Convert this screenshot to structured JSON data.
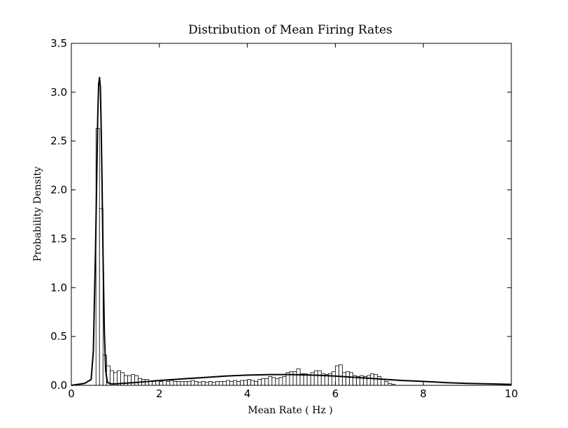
{
  "chart_data": {
    "type": "bar",
    "title": "Distribution of Mean Firing Rates",
    "xlabel": "Mean Rate ( Hz )",
    "ylabel": "Probability Density",
    "xlim": [
      0,
      10
    ],
    "ylim": [
      0,
      3.5
    ],
    "xticks": [
      0,
      2,
      4,
      6,
      8,
      10
    ],
    "xtick_labels": [
      "0",
      "2",
      "4",
      "6",
      "8",
      "10"
    ],
    "yticks": [
      0,
      0.5,
      1.0,
      1.5,
      2.0,
      2.5,
      3.0,
      3.5
    ],
    "ytick_labels": [
      "0.0",
      "0.5",
      "1.0",
      "1.5",
      "2.0",
      "2.5",
      "3.0",
      "3.5"
    ],
    "grid": false,
    "legend": "none",
    "histogram": {
      "bin_start": 0.56,
      "bin_width": 0.08,
      "values": [
        2.63,
        1.81,
        0.31,
        0.2,
        0.15,
        0.13,
        0.15,
        0.13,
        0.1,
        0.1,
        0.11,
        0.1,
        0.07,
        0.06,
        0.06,
        0.04,
        0.04,
        0.05,
        0.04,
        0.05,
        0.04,
        0.05,
        0.04,
        0.04,
        0.04,
        0.04,
        0.04,
        0.05,
        0.04,
        0.03,
        0.04,
        0.03,
        0.04,
        0.03,
        0.04,
        0.04,
        0.04,
        0.05,
        0.04,
        0.05,
        0.04,
        0.05,
        0.05,
        0.06,
        0.05,
        0.04,
        0.06,
        0.07,
        0.07,
        0.09,
        0.08,
        0.07,
        0.08,
        0.09,
        0.13,
        0.14,
        0.14,
        0.17,
        0.12,
        0.12,
        0.11,
        0.13,
        0.15,
        0.15,
        0.12,
        0.11,
        0.12,
        0.14,
        0.2,
        0.21,
        0.13,
        0.14,
        0.13,
        0.1,
        0.09,
        0.1,
        0.09,
        0.1,
        0.12,
        0.11,
        0.09,
        0.06,
        0.04,
        0.02,
        0.01
      ]
    },
    "density_curve": {
      "x": [
        0,
        0.3,
        0.45,
        0.5,
        0.55,
        0.58,
        0.6,
        0.62,
        0.64,
        0.66,
        0.68,
        0.7,
        0.72,
        0.75,
        0.78,
        0.82,
        0.9,
        1.0,
        1.5,
        2.0,
        2.5,
        3.0,
        3.5,
        4.0,
        4.5,
        5.0,
        5.5,
        6.0,
        6.5,
        7.0,
        7.5,
        8.0,
        8.5,
        9.0,
        9.5,
        10.0
      ],
      "y": [
        0.0,
        0.02,
        0.06,
        0.35,
        1.4,
        2.2,
        2.75,
        3.08,
        3.15,
        3.05,
        2.6,
        2.0,
        1.35,
        0.55,
        0.15,
        0.03,
        0.015,
        0.015,
        0.03,
        0.05,
        0.065,
        0.08,
        0.095,
        0.105,
        0.11,
        0.11,
        0.105,
        0.095,
        0.08,
        0.065,
        0.05,
        0.04,
        0.028,
        0.02,
        0.015,
        0.01
      ]
    }
  }
}
